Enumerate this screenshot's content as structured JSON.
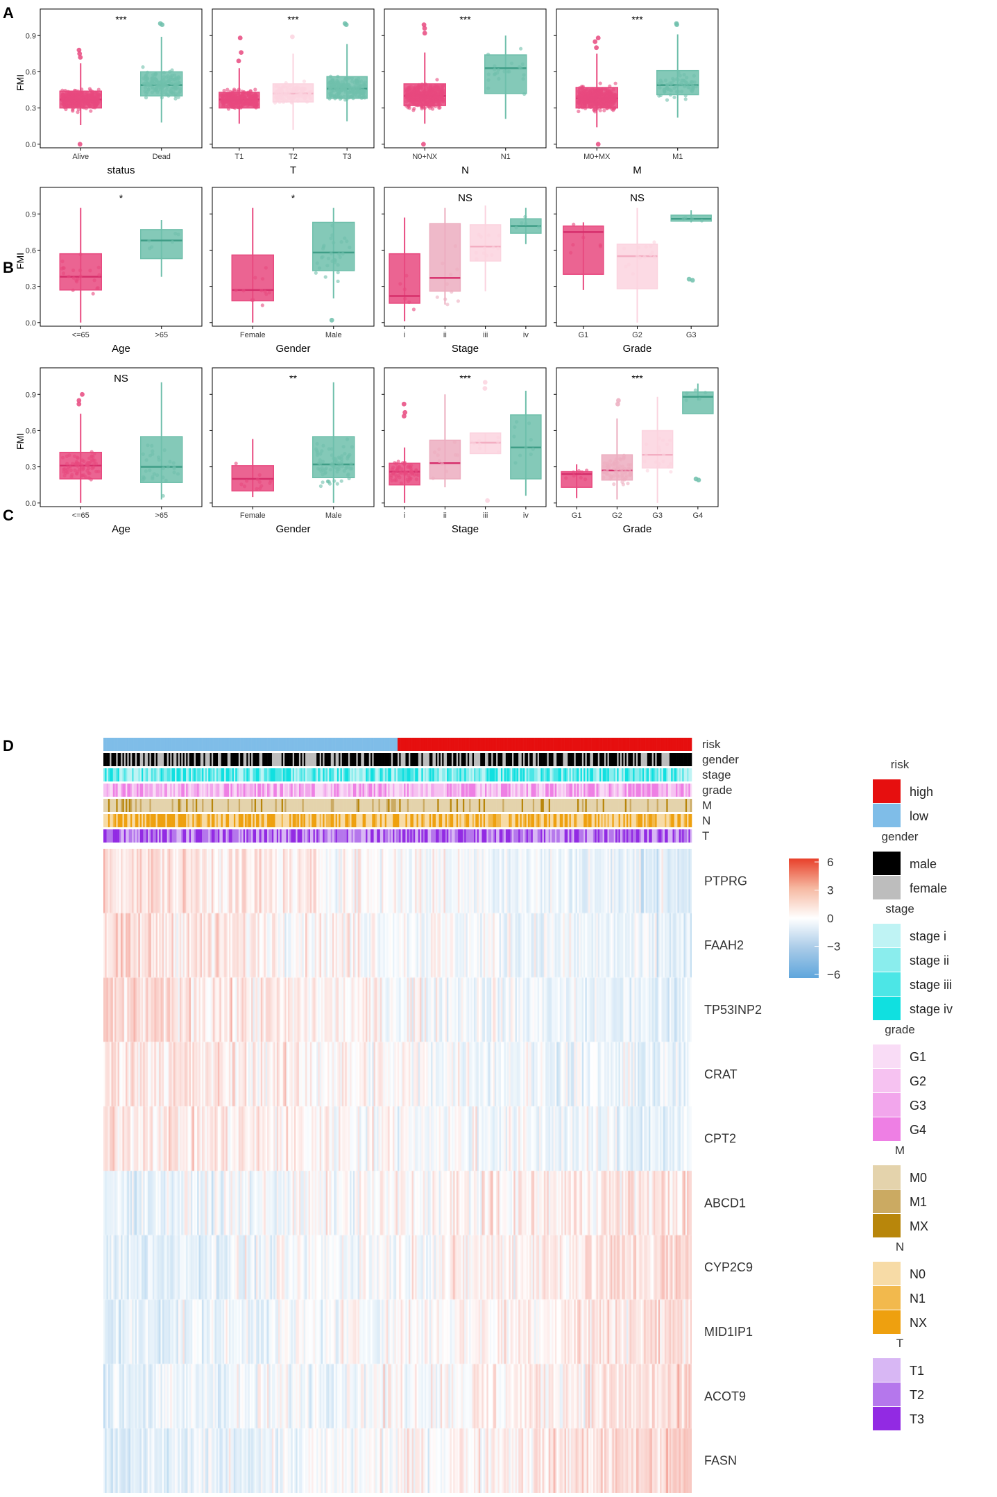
{
  "figure": {
    "panel_labels": [
      "A",
      "B",
      "C",
      "D"
    ],
    "y_axis_label": "FMI",
    "y_ticks": [
      "0.0",
      "0.3",
      "0.6",
      "0.9"
    ],
    "y_tick_values": [
      0.0,
      0.3,
      0.6,
      0.9
    ],
    "ylim": [
      -0.03,
      1.12
    ]
  },
  "colors": {
    "group_palette": [
      "#e8497f",
      "#ecadbf",
      "#fbd3df",
      "#6fbfab"
    ],
    "grid_border": "#000000"
  },
  "chart_data": [
    {
      "type": "box",
      "panel": "A",
      "title": "***",
      "xlabel": "status",
      "categories": [
        "Alive",
        "Dead"
      ],
      "colors": [
        "#e8497f",
        "#6fbfab"
      ],
      "stats": [
        [
          0.16,
          0.3,
          0.37,
          0.44,
          0.67
        ],
        [
          0.18,
          0.4,
          0.49,
          0.6,
          0.89
        ]
      ],
      "outliers": [
        [
          0.72,
          0.75,
          0.78,
          0.0
        ],
        [
          1.0,
          0.99
        ]
      ],
      "n_points": [
        380,
        160
      ]
    },
    {
      "type": "box",
      "panel": "A",
      "title": "***",
      "xlabel": "T",
      "categories": [
        "T1",
        "T2",
        "T3"
      ],
      "colors": [
        "#e8497f",
        "#fbd3df",
        "#6fbfab"
      ],
      "stats": [
        [
          0.17,
          0.3,
          0.37,
          0.43,
          0.63
        ],
        [
          0.12,
          0.35,
          0.42,
          0.5,
          0.75
        ],
        [
          0.19,
          0.38,
          0.46,
          0.56,
          0.83
        ]
      ],
      "outliers": [
        [
          0.76,
          0.69,
          0.88
        ],
        [
          0.89
        ],
        [
          1.0,
          0.99
        ]
      ],
      "n_points": [
        280,
        110,
        200
      ]
    },
    {
      "type": "box",
      "panel": "A",
      "title": "***",
      "xlabel": "N",
      "categories": [
        "N0+NX",
        "N1"
      ],
      "colors": [
        "#e8497f",
        "#6fbfab"
      ],
      "stats": [
        [
          0.17,
          0.32,
          0.4,
          0.5,
          0.76
        ],
        [
          0.21,
          0.42,
          0.63,
          0.74,
          0.9
        ]
      ],
      "outliers": [
        [
          0.99,
          0.96,
          0.92,
          0.0
        ],
        []
      ],
      "n_points": [
        420,
        22
      ]
    },
    {
      "type": "box",
      "panel": "A",
      "title": "***",
      "xlabel": "M",
      "categories": [
        "M0+MX",
        "M1"
      ],
      "colors": [
        "#e8497f",
        "#6fbfab"
      ],
      "stats": [
        [
          0.14,
          0.3,
          0.38,
          0.47,
          0.75
        ],
        [
          0.22,
          0.41,
          0.49,
          0.61,
          0.91
        ]
      ],
      "outliers": [
        [
          0.88,
          0.85,
          0.8,
          0.0
        ],
        [
          1.0,
          0.99
        ]
      ],
      "n_points": [
        420,
        70
      ]
    },
    {
      "type": "box",
      "panel": "B",
      "title": "*",
      "xlabel": "Age",
      "categories": [
        "<=65",
        ">65"
      ],
      "colors": [
        "#e8497f",
        "#6fbfab"
      ],
      "stats": [
        [
          0.0,
          0.27,
          0.38,
          0.57,
          0.95
        ],
        [
          0.38,
          0.53,
          0.68,
          0.77,
          0.85
        ]
      ],
      "outliers": [
        [],
        []
      ],
      "n_points": [
        22,
        6
      ]
    },
    {
      "type": "box",
      "panel": "B",
      "title": "*",
      "xlabel": "Gender",
      "categories": [
        "Female",
        "Male"
      ],
      "colors": [
        "#e8497f",
        "#6fbfab"
      ],
      "stats": [
        [
          0.0,
          0.18,
          0.27,
          0.56,
          0.95
        ],
        [
          0.2,
          0.43,
          0.58,
          0.83,
          0.95
        ]
      ],
      "outliers": [
        [],
        [
          0.02
        ]
      ],
      "n_points": [
        12,
        30
      ]
    },
    {
      "type": "box",
      "panel": "B",
      "title": "NS",
      "xlabel": "Stage",
      "categories": [
        "i",
        "ii",
        "iii",
        "iv"
      ],
      "colors": [
        "#e8497f",
        "#ecadbf",
        "#fbd3df",
        "#6fbfab"
      ],
      "stats": [
        [
          0.01,
          0.16,
          0.22,
          0.57,
          0.87
        ],
        [
          0.15,
          0.26,
          0.37,
          0.82,
          0.95
        ],
        [
          0.26,
          0.51,
          0.63,
          0.81,
          0.97
        ],
        [
          0.65,
          0.74,
          0.8,
          0.86,
          0.95
        ]
      ],
      "outliers": [
        [],
        [],
        [],
        []
      ],
      "n_points": [
        6,
        10,
        12,
        5
      ]
    },
    {
      "type": "box",
      "panel": "B",
      "title": "NS",
      "xlabel": "Grade",
      "categories": [
        "G1",
        "G2",
        "G3"
      ],
      "colors": [
        "#e8497f",
        "#fbd3df",
        "#6fbfab"
      ],
      "stats": [
        [
          0.27,
          0.4,
          0.75,
          0.8,
          0.83
        ],
        [
          0.0,
          0.28,
          0.55,
          0.65,
          0.95
        ],
        [
          0.83,
          0.84,
          0.86,
          0.89,
          0.93
        ]
      ],
      "outliers": [
        [],
        [],
        [
          0.35,
          0.36
        ]
      ],
      "n_points": [
        6,
        14,
        4
      ]
    },
    {
      "type": "box",
      "panel": "C",
      "title": "NS",
      "xlabel": "Age",
      "categories": [
        "<=65",
        ">65"
      ],
      "colors": [
        "#e8497f",
        "#6fbfab"
      ],
      "stats": [
        [
          0.0,
          0.2,
          0.31,
          0.42,
          0.74
        ],
        [
          0.03,
          0.17,
          0.3,
          0.55,
          1.0
        ]
      ],
      "outliers": [
        [
          0.9,
          0.85,
          0.82
        ],
        []
      ],
      "n_points": [
        70,
        30
      ]
    },
    {
      "type": "box",
      "panel": "C",
      "title": "**",
      "xlabel": "Gender",
      "categories": [
        "Female",
        "Male"
      ],
      "colors": [
        "#e8497f",
        "#6fbfab"
      ],
      "stats": [
        [
          0.05,
          0.1,
          0.2,
          0.31,
          0.53
        ],
        [
          0.0,
          0.21,
          0.32,
          0.55,
          1.0
        ]
      ],
      "outliers": [
        [],
        []
      ],
      "n_points": [
        12,
        75
      ]
    },
    {
      "type": "box",
      "panel": "C",
      "title": "***",
      "xlabel": "Stage",
      "categories": [
        "i",
        "ii",
        "iii",
        "iv"
      ],
      "colors": [
        "#e8497f",
        "#ecadbf",
        "#fbd3df",
        "#6fbfab"
      ],
      "stats": [
        [
          0.0,
          0.15,
          0.26,
          0.33,
          0.46
        ],
        [
          0.13,
          0.2,
          0.33,
          0.52,
          0.9
        ],
        [
          0.42,
          0.41,
          0.5,
          0.58,
          0.58
        ],
        [
          0.06,
          0.2,
          0.46,
          0.73,
          0.93
        ]
      ],
      "outliers": [
        [
          0.82,
          0.75,
          0.72
        ],
        [],
        [
          1.0,
          0.95,
          0.02
        ],
        []
      ],
      "n_points": [
        60,
        10,
        8,
        10
      ]
    },
    {
      "type": "box",
      "panel": "C",
      "title": "***",
      "xlabel": "Grade",
      "categories": [
        "G1",
        "G2",
        "G3",
        "G4"
      ],
      "colors": [
        "#e8497f",
        "#ecadbf",
        "#fbd3df",
        "#6fbfab"
      ],
      "stats": [
        [
          0.04,
          0.13,
          0.24,
          0.26,
          0.32
        ],
        [
          0.03,
          0.19,
          0.27,
          0.4,
          0.7
        ],
        [
          0.0,
          0.29,
          0.4,
          0.6,
          0.88
        ],
        [
          0.85,
          0.74,
          0.88,
          0.92,
          0.99
        ]
      ],
      "outliers": [
        [],
        [
          0.85,
          0.82
        ],
        [],
        [
          0.2,
          0.19
        ]
      ],
      "n_points": [
        8,
        70,
        18,
        5
      ]
    },
    {
      "type": "heatmap",
      "panel": "D",
      "annotation_tracks": [
        "risk",
        "gender",
        "stage",
        "grade",
        "M",
        "N",
        "T"
      ],
      "genes": [
        "PTPRG",
        "FAAH2",
        "TP53INP2",
        "CRAT",
        "CPT2",
        "ABCD1",
        "CYP2C9",
        "MID1IP1",
        "ACOT9",
        "FASN"
      ],
      "colorbar_ticks": [
        "6",
        "3",
        "0",
        "−3",
        "−6"
      ],
      "colorbar_values": [
        6,
        3,
        0,
        -3,
        -6
      ],
      "colorbar_colors": [
        "#e8402a",
        "#f6b9a2",
        "#ffffff",
        "#a9cbe8",
        "#5fa6dc"
      ],
      "n_samples": 370,
      "low_risk_fraction": 0.5,
      "gene_trend": [
        -0.6,
        -0.55,
        -0.6,
        -0.5,
        -0.5,
        0.45,
        0.6,
        0.55,
        0.5,
        0.75
      ],
      "legend": [
        {
          "title": "risk",
          "items": [
            {
              "label": "high",
              "color": "#e60f0f"
            },
            {
              "label": "low",
              "color": "#7fbde8"
            }
          ]
        },
        {
          "title": "gender",
          "items": [
            {
              "label": "male",
              "color": "#000000"
            },
            {
              "label": "female",
              "color": "#bdbdbd"
            }
          ]
        },
        {
          "title": "stage",
          "items": [
            {
              "label": "stage i",
              "color": "#bff3f4"
            },
            {
              "label": "stage ii",
              "color": "#8aeded"
            },
            {
              "label": "stage iii",
              "color": "#4ce6e6"
            },
            {
              "label": "stage iv",
              "color": "#10e0e0"
            }
          ]
        },
        {
          "title": "grade",
          "items": [
            {
              "label": "G1",
              "color": "#f9dcf6"
            },
            {
              "label": "G2",
              "color": "#f6c2f1"
            },
            {
              "label": "G3",
              "color": "#f2a6ec"
            },
            {
              "label": "G4",
              "color": "#ee7fe4"
            }
          ]
        },
        {
          "title": "M",
          "items": [
            {
              "label": "M0",
              "color": "#e4d3ac"
            },
            {
              "label": "M1",
              "color": "#cbaa62"
            },
            {
              "label": "MX",
              "color": "#b8860b"
            }
          ]
        },
        {
          "title": "N",
          "items": [
            {
              "label": "N0",
              "color": "#f7dba6"
            },
            {
              "label": "N1",
              "color": "#f2b94d"
            },
            {
              "label": "NX",
              "color": "#eea00f"
            }
          ]
        },
        {
          "title": "T",
          "items": [
            {
              "label": "T1",
              "color": "#d8b7f4"
            },
            {
              "label": "T2",
              "color": "#b577ec"
            },
            {
              "label": "T3",
              "color": "#922ae3"
            }
          ]
        }
      ]
    }
  ]
}
